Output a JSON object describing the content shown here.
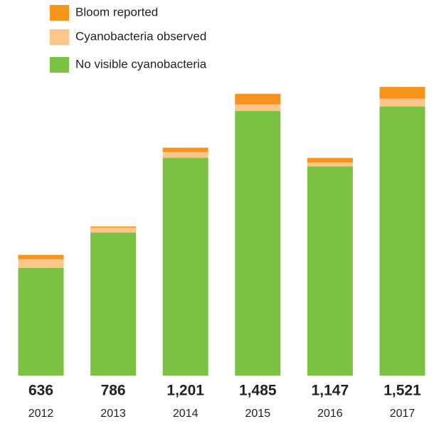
{
  "chart_data": {
    "type": "stacked-bar",
    "categories": [
      "2012",
      "2013",
      "2014",
      "2015",
      "2016",
      "2017"
    ],
    "series": [
      {
        "name": "No visible cyanobacteria",
        "color": "#7bc143",
        "values": [
          568,
          753,
          1148,
          1395,
          1103,
          1418
        ]
      },
      {
        "name": "Cyanobacteria observed",
        "color": "#fdc68a",
        "values": [
          45,
          26,
          30,
          34,
          19,
          41
        ]
      },
      {
        "name": "Bloom reported",
        "color": "#f7941d",
        "values": [
          23,
          7,
          23,
          56,
          25,
          62
        ]
      }
    ],
    "totals": {
      "values": [
        636,
        786,
        1201,
        1485,
        1147,
        1521
      ],
      "value_labels": [
        "636",
        "786",
        "1,201",
        "1,485",
        "1,147",
        "1,521"
      ]
    },
    "ylim": [
      0,
      1600
    ]
  }
}
